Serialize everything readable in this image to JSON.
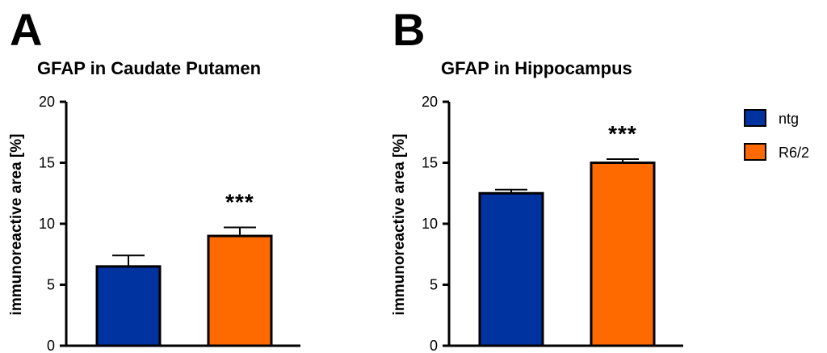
{
  "colors": {
    "ntg": "#0033A0",
    "R6/2": "#FF6A00",
    "axis": "#000000"
  },
  "legend": {
    "position": "right",
    "items": [
      {
        "label": "ntg",
        "color": "#0033A0"
      },
      {
        "label": "R6/2",
        "color": "#FF6A00"
      }
    ]
  },
  "chart_data": [
    {
      "type": "bar",
      "panel": "A",
      "title": "GFAP in Caudate Putamen",
      "ylabel": "immunoreactive area [%]",
      "ylim": [
        0,
        20
      ],
      "yticks": [
        "0",
        "5",
        "10",
        "15",
        "20"
      ],
      "categories": [
        "ntg",
        "R6/2"
      ],
      "values": [
        6.5,
        9.0
      ],
      "errors": [
        0.9,
        0.7
      ],
      "significance": [
        "",
        "***"
      ],
      "grid": false
    },
    {
      "type": "bar",
      "panel": "B",
      "title": "GFAP in Hippocampus",
      "ylabel": "immunoreactive area [%]",
      "ylim": [
        0,
        20
      ],
      "yticks": [
        "0",
        "5",
        "10",
        "15",
        "20"
      ],
      "categories": [
        "ntg",
        "R6/2"
      ],
      "values": [
        12.5,
        15.0
      ],
      "errors": [
        0.3,
        0.3
      ],
      "significance": [
        "",
        "***"
      ],
      "grid": false
    }
  ]
}
